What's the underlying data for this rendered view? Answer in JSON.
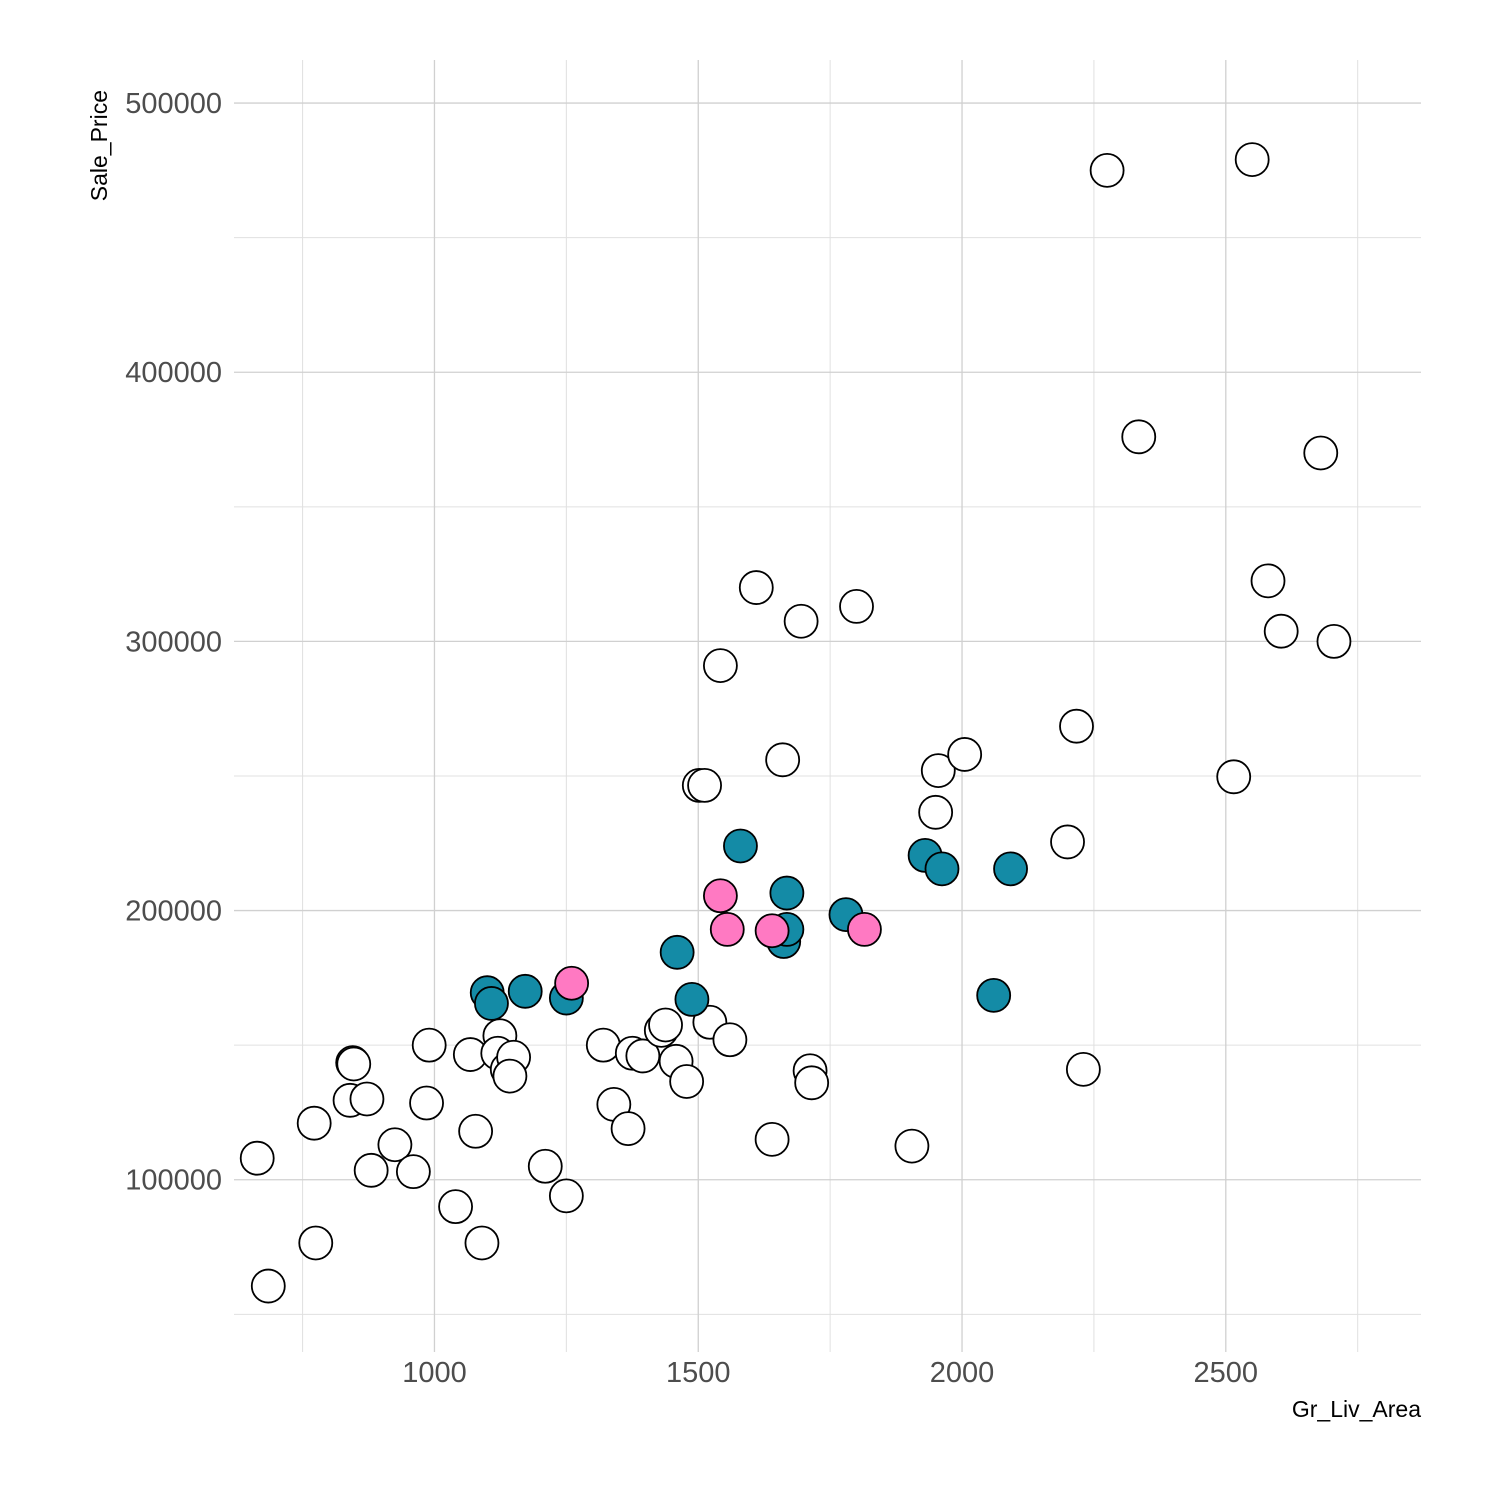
{
  "chart_data": {
    "type": "scatter",
    "xlabel": "Gr_Liv_Area",
    "ylabel": "Sale_Price",
    "xlim": [
      620,
      2870
    ],
    "ylim": [
      36000,
      516000
    ],
    "x_ticks": [
      1000,
      1500,
      2000,
      2500
    ],
    "x_minor_ticks": [
      750,
      1250,
      1750,
      2250,
      2750
    ],
    "y_ticks": [
      100000,
      200000,
      300000,
      400000,
      500000
    ],
    "y_minor_ticks": [
      50000,
      150000,
      250000,
      350000,
      450000
    ],
    "grid": true,
    "colors": {
      "white": "#ffffff",
      "teal": "#148ba6",
      "pink": "#ff79c2",
      "outline": "#000000"
    },
    "series": [
      {
        "color": "white",
        "points": [
          [
            664,
            108000
          ],
          [
            685,
            60500
          ],
          [
            775,
            76500
          ],
          [
            772,
            121000
          ],
          [
            840,
            129500
          ],
          [
            845,
            143500
          ],
          [
            847,
            143000
          ],
          [
            872,
            130000
          ],
          [
            880,
            103500
          ],
          [
            925,
            113000
          ],
          [
            960,
            103000
          ],
          [
            990,
            150000
          ],
          [
            985,
            128500
          ],
          [
            1040,
            90000
          ],
          [
            1068,
            146500
          ],
          [
            1078,
            118000
          ],
          [
            1090,
            76500
          ],
          [
            1124,
            153500
          ],
          [
            1120,
            147000
          ],
          [
            1138,
            141000
          ],
          [
            1150,
            145500
          ],
          [
            1143,
            138500
          ],
          [
            1210,
            105000
          ],
          [
            1250,
            94000
          ],
          [
            1320,
            150000
          ],
          [
            1340,
            128000
          ],
          [
            1367,
            119000
          ],
          [
            1375,
            147000
          ],
          [
            1395,
            146000
          ],
          [
            1430,
            155500
          ],
          [
            1438,
            157500
          ],
          [
            1458,
            144000
          ],
          [
            1478,
            136500
          ],
          [
            1502,
            246500
          ],
          [
            1512,
            246500
          ],
          [
            1522,
            158500
          ],
          [
            1542,
            291000
          ],
          [
            1560,
            152000
          ],
          [
            1610,
            320000
          ],
          [
            1640,
            115000
          ],
          [
            1660,
            256000
          ],
          [
            1695,
            307500
          ],
          [
            1712,
            140500
          ],
          [
            1715,
            136000
          ],
          [
            1800,
            313000
          ],
          [
            1905,
            112500
          ],
          [
            1950,
            236500
          ],
          [
            1955,
            252000
          ],
          [
            2005,
            258000
          ],
          [
            2200,
            225500
          ],
          [
            2217,
            268500
          ],
          [
            2230,
            141000
          ],
          [
            2275,
            475000
          ],
          [
            2335,
            376000
          ],
          [
            2515,
            249700
          ],
          [
            2550,
            479000
          ],
          [
            2580,
            322500
          ],
          [
            2605,
            303800
          ],
          [
            2680,
            370000
          ],
          [
            2705,
            300000
          ]
        ]
      },
      {
        "color": "teal",
        "points": [
          [
            1100,
            169500
          ],
          [
            1108,
            165500
          ],
          [
            1172,
            170000
          ],
          [
            1250,
            167500
          ],
          [
            1460,
            184500
          ],
          [
            1488,
            167000
          ],
          [
            1580,
            224000
          ],
          [
            1662,
            188500
          ],
          [
            1668,
            193000
          ],
          [
            1668,
            206500
          ],
          [
            1780,
            198500
          ],
          [
            1930,
            220500
          ],
          [
            1962,
            215500
          ],
          [
            2060,
            168500
          ],
          [
            2092,
            215500
          ]
        ]
      },
      {
        "color": "pink",
        "points": [
          [
            1260,
            173000
          ],
          [
            1542,
            205500
          ],
          [
            1555,
            193000
          ],
          [
            1640,
            192500
          ],
          [
            1815,
            193000
          ]
        ]
      }
    ]
  }
}
